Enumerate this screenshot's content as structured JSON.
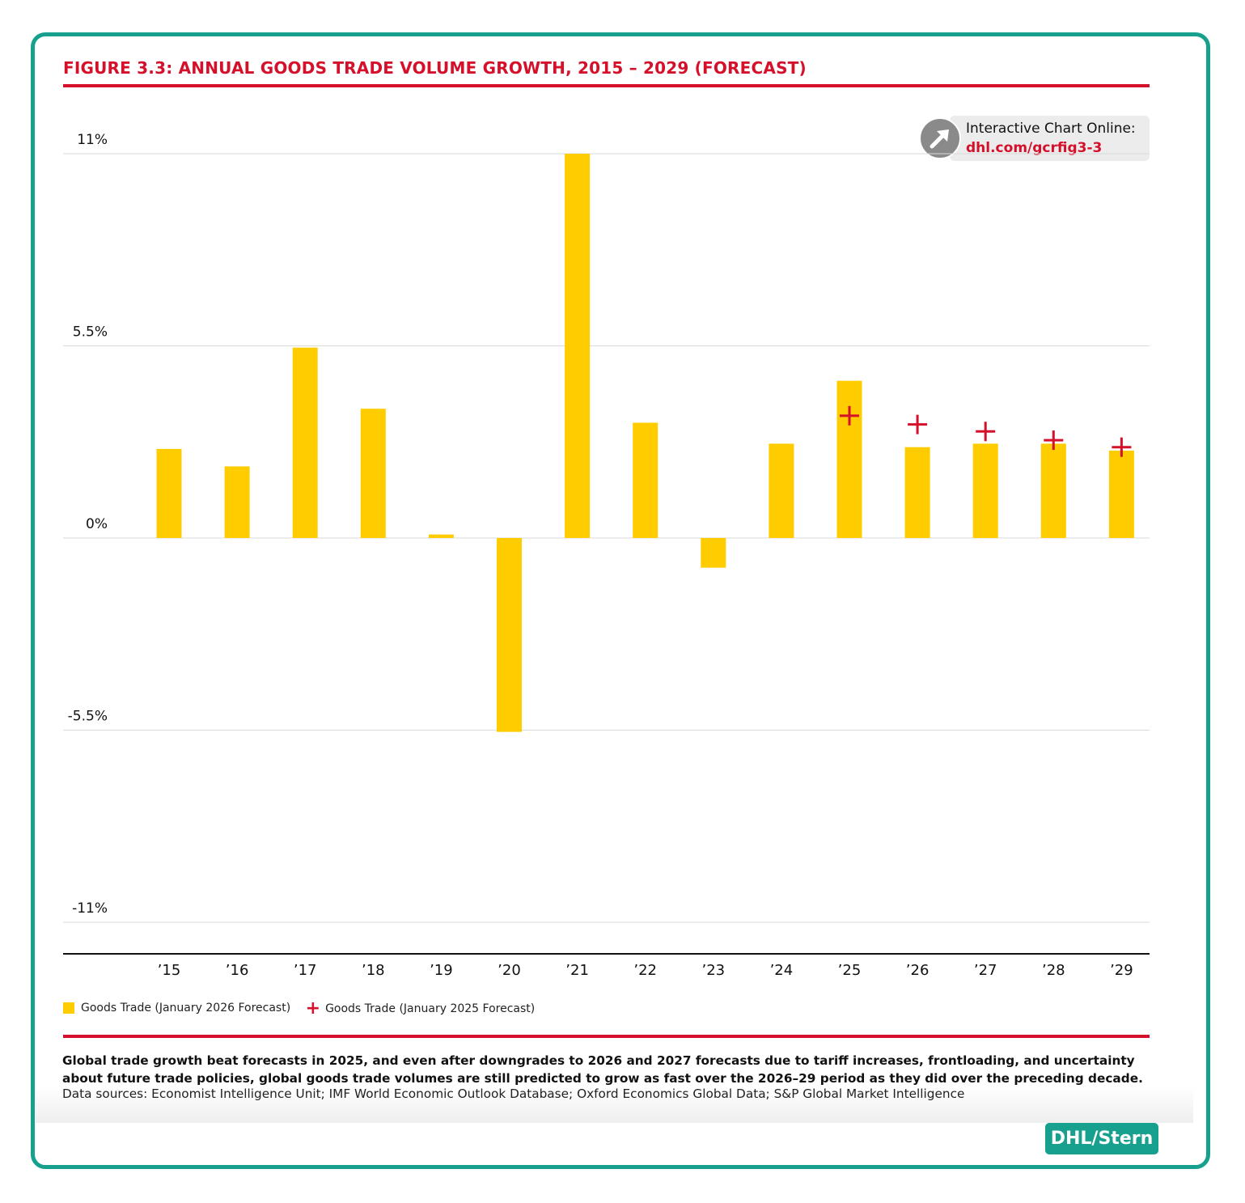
{
  "figure": {
    "title": "FIGURE 3.3: ANNUAL GOODS TRADE VOLUME GROWTH, 2015 – 2029 (FORECAST)",
    "promo_line1": "Interactive Chart Online:",
    "promo_link": "dhl.com/gcrfig3-3",
    "caption": "Global trade growth beat forecasts in 2025, and even after downgrades to 2026 and 2027 forecasts due to tariff increases, frontloading, and uncertainty about future trade policies, global goods trade volumes are still predicted to grow as fast over the 2026–29 period as they did over the preceding decade.",
    "sources": "Data sources: Economist Intelligence Unit; IMF World Economic Outlook Database; Oxford Economics Global Data; S&P Global Market Intelligence",
    "brand": "DHL/Stern"
  },
  "colors": {
    "bar": "#ffcc00",
    "marker": "#d4102b",
    "accent": "#d4102b",
    "frame": "#17a08d",
    "grid": "#d9d9d9"
  },
  "chart_data": {
    "type": "bar",
    "title": "FIGURE 3.3: ANNUAL GOODS TRADE VOLUME GROWTH, 2015 – 2029 (FORECAST)",
    "xlabel": "",
    "ylabel": "",
    "ylim": [
      -11,
      11
    ],
    "yticks": [
      11,
      5.5,
      0,
      -5.5,
      -11
    ],
    "ytick_labels": [
      "11%",
      "5.5%",
      "0%",
      "-5.5%",
      "-11%"
    ],
    "grid": true,
    "legend_position": "bottom-left",
    "categories": [
      "’15",
      "’16",
      "’17",
      "’18",
      "’19",
      "’20",
      "’21",
      "’22",
      "’23",
      "’24",
      "’25",
      "’26",
      "’27",
      "’28",
      "’29"
    ],
    "series": [
      {
        "name": "Goods Trade (January 2026 Forecast)",
        "kind": "bar",
        "values": [
          2.55,
          2.05,
          5.45,
          3.7,
          0.1,
          -5.55,
          11.0,
          3.3,
          -0.85,
          2.7,
          4.5,
          2.6,
          2.7,
          2.7,
          2.5
        ]
      },
      {
        "name": "Goods Trade (January 2025 Forecast)",
        "kind": "marker",
        "values": [
          null,
          null,
          null,
          null,
          null,
          null,
          null,
          null,
          null,
          null,
          3.5,
          3.25,
          3.05,
          2.8,
          2.6
        ]
      }
    ]
  }
}
